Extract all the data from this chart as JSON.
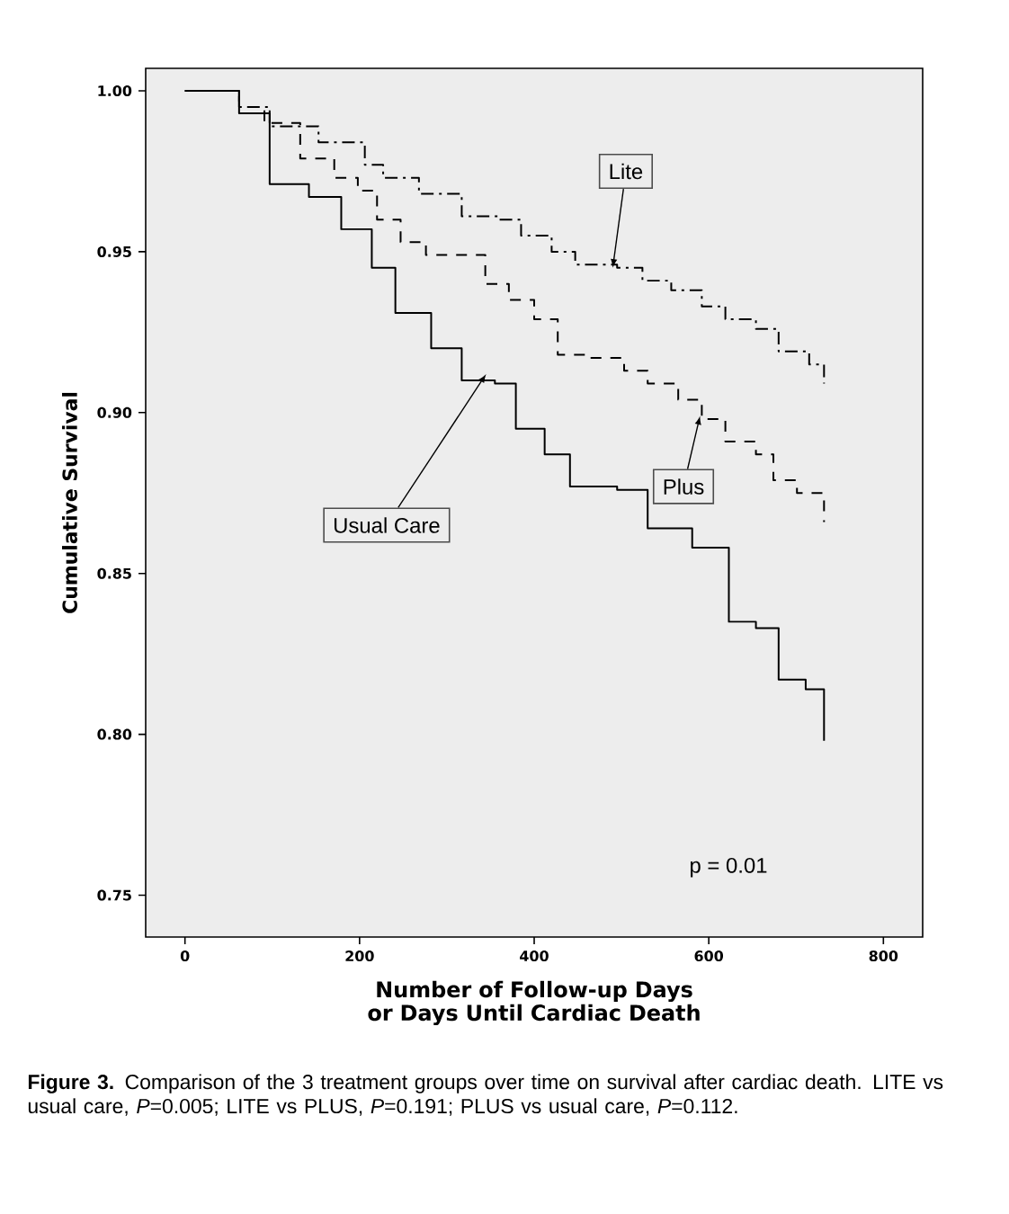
{
  "chart_data": {
    "type": "step",
    "xlabel": "Number of Follow-up Days or Days Until Cardiac Death",
    "ylabel": "Cumulative Survival",
    "xlim": [
      -45,
      845
    ],
    "ylim": [
      0.737,
      1.007
    ],
    "xticks": [
      0,
      200,
      400,
      600,
      800
    ],
    "yticks": [
      {
        "value": 0.75,
        "label": "0.75"
      },
      {
        "value": 0.8,
        "label": "0.80"
      },
      {
        "value": 0.85,
        "label": "0.85"
      },
      {
        "value": 0.9,
        "label": "0.90"
      },
      {
        "value": 0.95,
        "label": "0.95"
      },
      {
        "value": 1.0,
        "label": "1.00"
      }
    ],
    "series": [
      {
        "color": "#000000",
        "line_style": "dotted",
        "x": [
          0,
          62,
          97,
          153,
          206,
          227,
          268,
          317,
          359,
          385,
          420,
          447,
          495,
          524,
          557,
          592,
          619,
          654,
          680,
          715,
          732
        ],
        "values": [
          1.0,
          0.995,
          0.989,
          0.984,
          0.977,
          0.973,
          0.968,
          0.961,
          0.96,
          0.955,
          0.95,
          0.946,
          0.945,
          0.941,
          0.938,
          0.933,
          0.929,
          0.926,
          0.919,
          0.915,
          0.909
        ]
      },
      {
        "color": "#000000",
        "line_style": "dashed",
        "x": [
          0,
          62,
          91,
          132,
          171,
          198,
          220,
          247,
          276,
          344,
          371,
          400,
          427,
          462,
          503,
          530,
          565,
          592,
          619,
          654,
          674,
          701,
          732
        ],
        "values": [
          1.0,
          0.995,
          0.99,
          0.979,
          0.973,
          0.969,
          0.96,
          0.953,
          0.949,
          0.94,
          0.935,
          0.929,
          0.918,
          0.917,
          0.913,
          0.909,
          0.904,
          0.898,
          0.891,
          0.887,
          0.879,
          0.875,
          0.866
        ]
      },
      {
        "color": "#000000",
        "line_style": "solid",
        "x": [
          0,
          62,
          97,
          142,
          179,
          214,
          241,
          282,
          317,
          355,
          379,
          412,
          441,
          495,
          530,
          581,
          623,
          654,
          680,
          711,
          732
        ],
        "values": [
          1.0,
          0.993,
          0.971,
          0.967,
          0.957,
          0.945,
          0.931,
          0.92,
          0.91,
          0.909,
          0.895,
          0.887,
          0.877,
          0.876,
          0.864,
          0.858,
          0.835,
          0.833,
          0.817,
          0.814,
          0.798
        ]
      }
    ],
    "annotations": [
      {
        "text": "Lite",
        "x": 490,
        "y": 0.945
      },
      {
        "text": "Plus",
        "x": 590,
        "y": 0.899
      },
      {
        "text": "Usual Care",
        "x": 345,
        "y": 0.912
      },
      "p = 0.01",
      "**Figure 3.** Comparison of the 3 treatment groups over time on survival after cardiac death. LITE vs usual care, *P*=0.005; LITE vs PLUS, *P*=0.191; PLUS vs usual care, *P*=0.112."
    ]
  }
}
